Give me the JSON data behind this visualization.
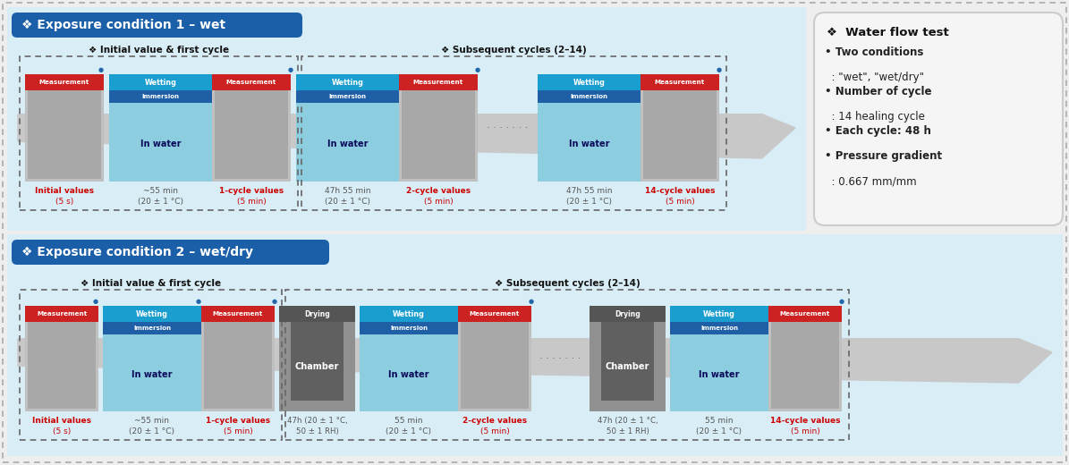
{
  "title1": "❖ Exposure condition 1 – wet",
  "title2": "❖ Exposure condition 2 – wet/dry",
  "outer_bg": "#eeeeee",
  "panel_bg": "#d8edf6",
  "header_color": "#1a5fa8",
  "wetting_color": "#1a9ed0",
  "immersion_color": "#1f5fa6",
  "measurement_color": "#cc2222",
  "drying_color": "#888888",
  "drying_dark": "#555555",
  "water_bg": "#8dcde0",
  "equip_bg": "#c0c0c0",
  "equip_inner": "#a8a8a8",
  "arrow_color": "#c8c8c8",
  "label_red": "#cc0000",
  "label_gray": "#555555",
  "dashed_color": "#777777",
  "info_box_bg": "#f5f5f5",
  "info_box_border": "#cccccc",
  "info_title": "❖  Water flow test",
  "info_lines": [
    {
      "text": "• Two conditions",
      "bold": true
    },
    {
      "text": "  : \"wet\", \"wet/dry\"",
      "bold": false
    },
    {
      "text": "• Number of cycle",
      "bold": true
    },
    {
      "text": "  : 14 healing cycle",
      "bold": false
    },
    {
      "text": "• Each cycle: 48 h",
      "bold": true
    },
    {
      "text": "• Pressure gradient",
      "bold": true
    },
    {
      "text": "  : 0.667 mm/mm",
      "bold": false
    }
  ],
  "sublabel1_init": "❖ Initial value & first cycle",
  "sublabel1_sub": "❖ Subsequent cycles (2–14)",
  "sublabel2_init": "❖ Initial value & first cycle",
  "sublabel2_sub": "❖ Subsequent cycles (2–14)"
}
